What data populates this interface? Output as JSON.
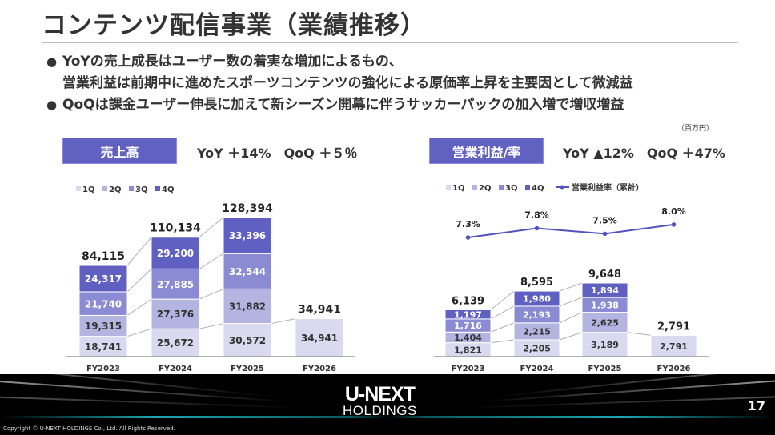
{
  "title": "コンテンツ配信事業（業績推移）",
  "bullets": [
    {
      "line1": "YoYの売上成長はユーザー数の着実な増加によるもの、",
      "line2": "営業利益は前期中に進めたスポーツコンテンツの強化による原価率上昇を主要因として微減益"
    },
    {
      "line1": "QoQは課金ユーザー伸長に加えて新シーズン開幕に伴うサッカーパックの加入増で増収増益"
    }
  ],
  "bullet_glyph": "●",
  "unit": "（百万円）",
  "colors": {
    "q1": "#d9d9ef",
    "q2": "#b4b4e1",
    "q3": "#8b8bd4",
    "q4": "#6060c3",
    "accent": "#6161c2",
    "line": "#5252c0"
  },
  "chart_data": [
    {
      "type": "bar",
      "stacked": true,
      "header": "売上高",
      "metrics": "YoY ＋14%　QoQ ＋５％",
      "categories": [
        "FY2023",
        "FY2024",
        "FY2025",
        "FY2026"
      ],
      "legend": [
        "1Q",
        "2Q",
        "3Q",
        "4Q"
      ],
      "series": [
        {
          "name": "1Q",
          "values": [
            18741,
            25672,
            30572,
            34941
          ],
          "labels": [
            "18,741",
            "25,672",
            "30,572",
            "34,941"
          ]
        },
        {
          "name": "2Q",
          "values": [
            19315,
            27376,
            31882,
            null
          ],
          "labels": [
            "19,315",
            "27,376",
            "31,882",
            ""
          ]
        },
        {
          "name": "3Q",
          "values": [
            21740,
            27885,
            32544,
            null
          ],
          "labels": [
            "21,740",
            "27,885",
            "32,544",
            ""
          ]
        },
        {
          "name": "4Q",
          "values": [
            24317,
            29200,
            33396,
            null
          ],
          "labels": [
            "24,317",
            "29,200",
            "33,396",
            ""
          ]
        }
      ],
      "totals": [
        "84,115",
        "110,134",
        "128,394",
        "34,941"
      ]
    },
    {
      "type": "bar+line",
      "stacked": true,
      "header": "営業利益/率",
      "metrics": "YoY ▲12%　QoQ ＋47%",
      "categories": [
        "FY2023",
        "FY2024",
        "FY2025",
        "FY2026"
      ],
      "legend": [
        "1Q",
        "2Q",
        "3Q",
        "4Q"
      ],
      "line_legend": "営業利益率（累計）",
      "series": [
        {
          "name": "1Q",
          "values": [
            1821,
            2205,
            3189,
            2791
          ],
          "labels": [
            "1,821",
            "2,205",
            "3,189",
            "2,791"
          ]
        },
        {
          "name": "2Q",
          "values": [
            1404,
            2215,
            2625,
            null
          ],
          "labels": [
            "1,404",
            "2,215",
            "2,625",
            ""
          ]
        },
        {
          "name": "3Q",
          "values": [
            1716,
            2193,
            1938,
            null
          ],
          "labels": [
            "1,716",
            "2,193",
            "1,938",
            ""
          ]
        },
        {
          "name": "4Q",
          "values": [
            1197,
            1980,
            1894,
            null
          ],
          "labels": [
            "1,197",
            "1,980",
            "1,894",
            ""
          ]
        }
      ],
      "totals": [
        "6,139",
        "8,595",
        "9,648",
        "2,791"
      ],
      "line": {
        "name": "営業利益率（累計）",
        "values": [
          7.3,
          7.8,
          7.5,
          8.0
        ],
        "labels": [
          "7.3%",
          "7.8%",
          "7.5%",
          "8.0%"
        ]
      }
    }
  ],
  "footer": {
    "logo_top": "U-NEXT",
    "logo_bottom": "HOLDINGS",
    "page_number": "17",
    "copyright": "Copyright © U-NEXT HOLDINGS Co., Ltd. All Rights Reserved."
  }
}
